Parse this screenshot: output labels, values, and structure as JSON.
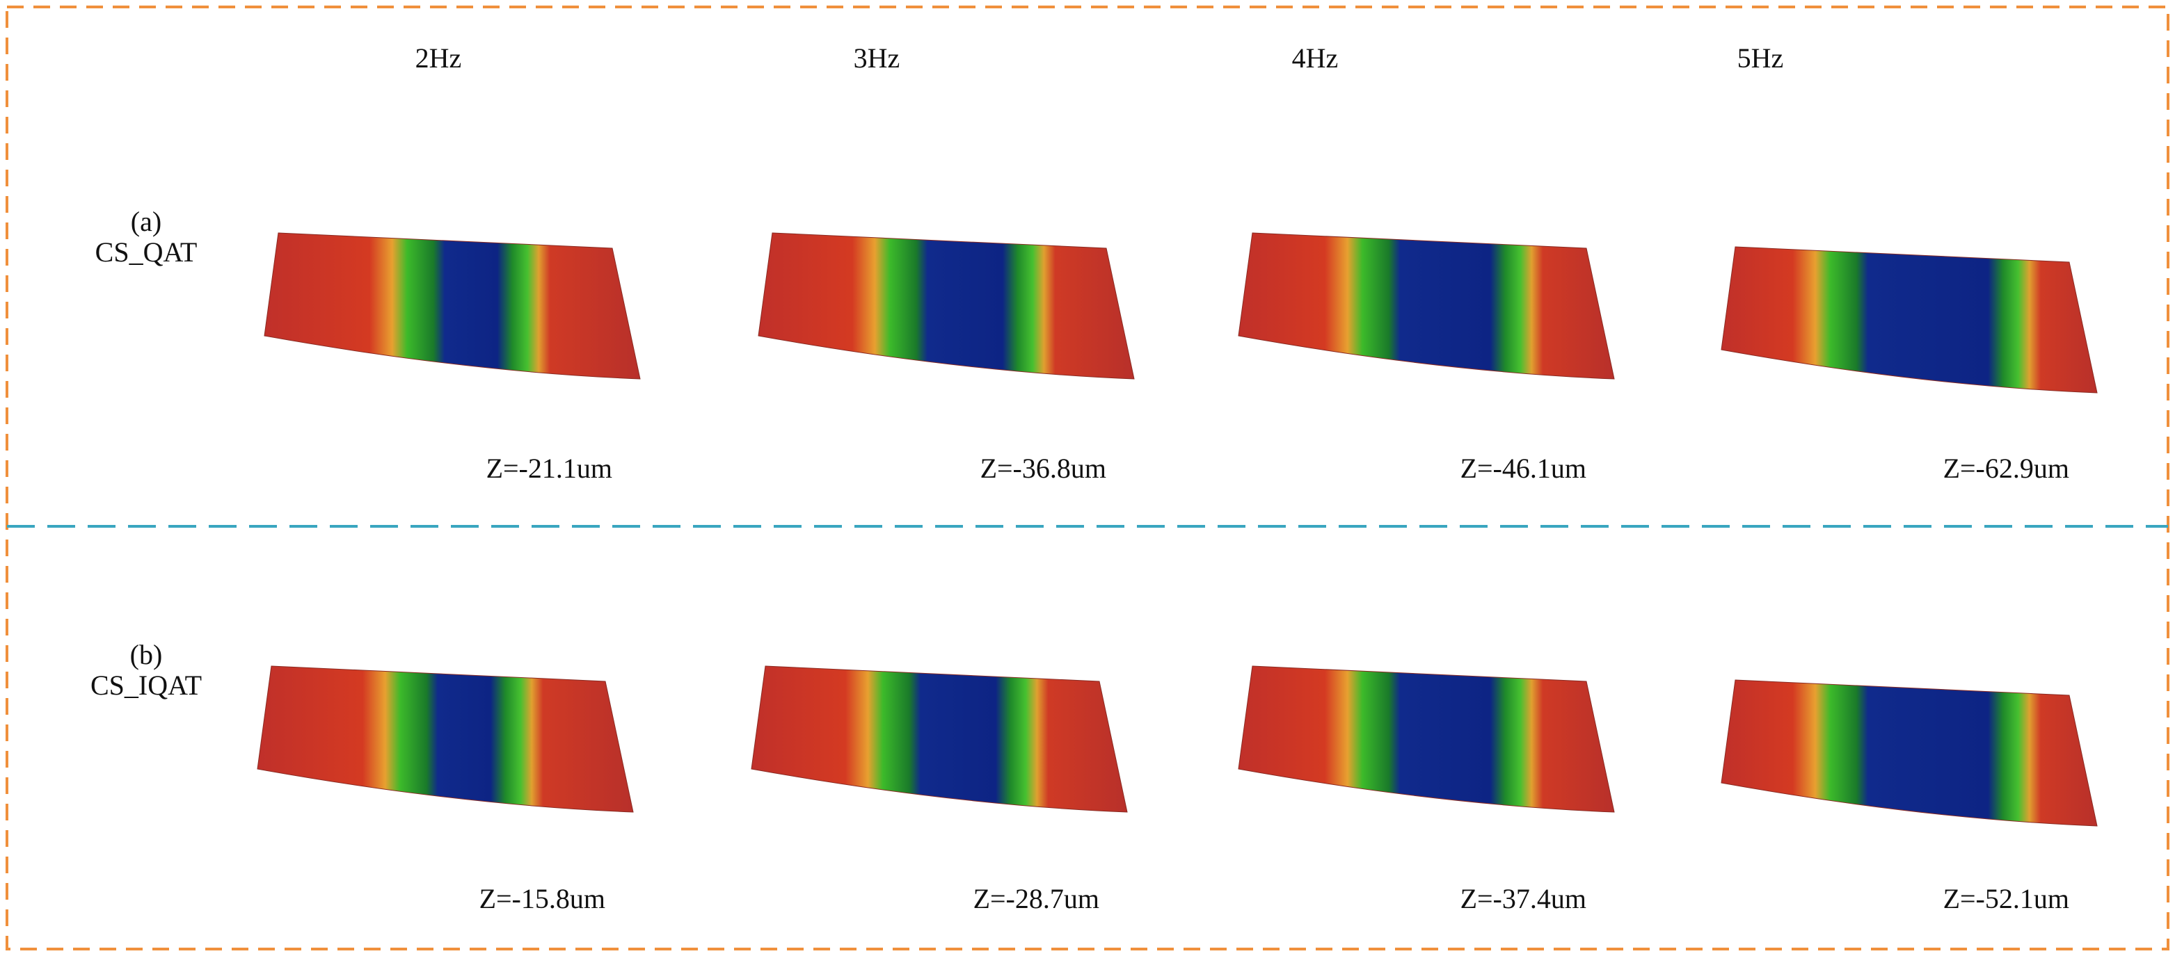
{
  "columns": [
    "2Hz",
    "3Hz",
    "4Hz",
    "5Hz"
  ],
  "rows": [
    {
      "tag": "(a)",
      "label": "CS_QAT",
      "depths": [
        "Z=-21.1um",
        "Z=-36.8um",
        "Z=-46.1um",
        "Z=-62.9um"
      ]
    },
    {
      "tag": "(b)",
      "label": "CS_IQAT",
      "depths": [
        "Z=-15.8um",
        "Z=-28.7um",
        "Z=-37.4um",
        "Z=-52.1um"
      ]
    }
  ]
}
